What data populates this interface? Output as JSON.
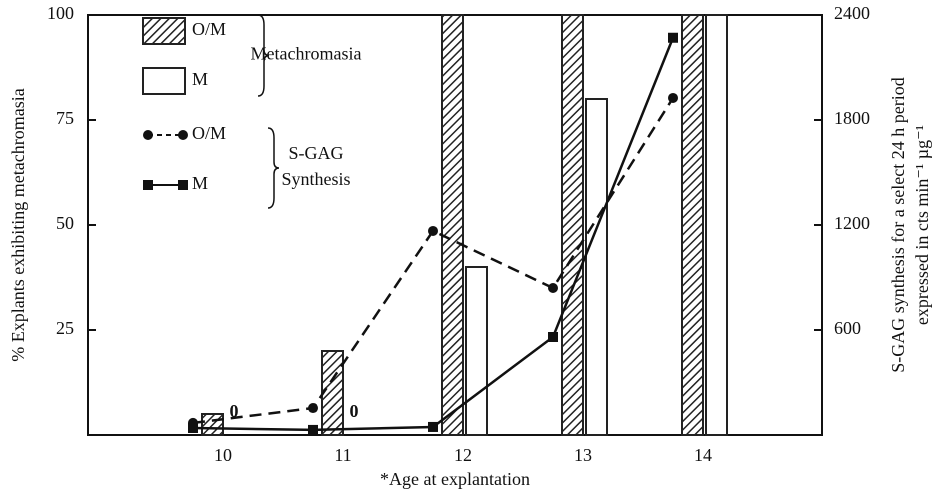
{
  "chart_data": {
    "type": "bar",
    "categories": [
      "10",
      "11",
      "12",
      "13",
      "14"
    ],
    "xlabel": "*Age at explantation",
    "ylabel": "% Explants exhibiting metachromasia",
    "y2label": [
      "S-GAG synthesis for a select 24 h period",
      "expressed in cts min⁻¹ µg⁻¹"
    ],
    "ylim": [
      0,
      100
    ],
    "yticks": [
      25,
      50,
      75,
      100
    ],
    "y2lim": [
      0,
      2400
    ],
    "y2ticks": [
      600,
      1200,
      1800,
      2400
    ],
    "group_labels": [
      [
        "Metachromasia"
      ],
      [
        "S-GAG",
        "Synthesis"
      ]
    ],
    "series": [
      {
        "name": "O/M",
        "type": "bar",
        "color": "#222",
        "pattern": "hatch",
        "group": 0,
        "values": [
          5,
          20,
          100,
          100,
          100
        ]
      },
      {
        "name": "M",
        "type": "bar",
        "color": "#222",
        "pattern": "none",
        "group": 0,
        "values": [
          0,
          0,
          40,
          80,
          100
        ]
      },
      {
        "name": "O/M",
        "type": "line",
        "axis": "y2",
        "color": "#111",
        "dash": true,
        "marker": "circle",
        "group": 1,
        "values": [
          69,
          154,
          1166,
          840,
          1926
        ]
      },
      {
        "name": "M",
        "type": "line",
        "axis": "y2",
        "color": "#111",
        "dash": false,
        "marker": "square",
        "group": 1,
        "values": [
          40,
          29,
          46,
          560,
          2270
        ]
      }
    ]
  }
}
